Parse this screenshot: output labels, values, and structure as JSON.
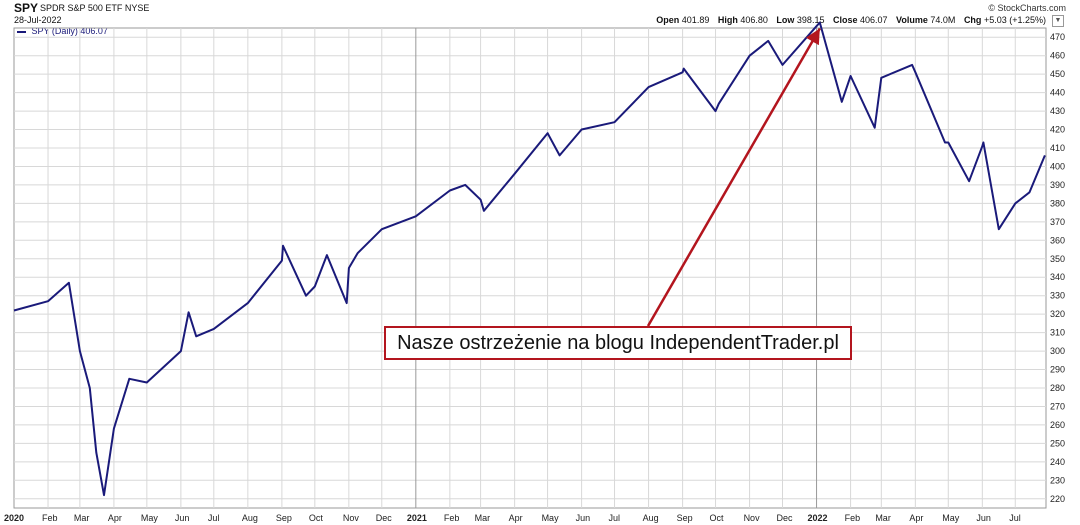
{
  "header": {
    "symbol": "SPY",
    "name": "SPDR S&P 500 ETF",
    "exchange": "NYSE",
    "date": "28-Jul-2022",
    "copyright": "© StockCharts.com",
    "stats": {
      "open_label": "Open",
      "open": "401.89",
      "high_label": "High",
      "high": "406.80",
      "low_label": "Low",
      "low": "398.15",
      "close_label": "Close",
      "close": "406.07",
      "volume_label": "Volume",
      "volume": "74.0M",
      "chg_label": "Chg",
      "chg": "+5.03 (+1.25%)"
    }
  },
  "legend": {
    "label": "SPY (Daily) 406.07"
  },
  "annotation": {
    "text": "Nasze ostrzeżenie na blogu IndependentTrader.pl",
    "border_color": "#b3151e"
  },
  "colors": {
    "line": "#1a1a7a",
    "grid": "#d8d8d8",
    "arrow": "#b3151e",
    "dark_grid": "#9a9a9a"
  },
  "chart_data": {
    "type": "line",
    "title": "SPY SPDR S&P 500 ETF NYSE",
    "series": [
      {
        "name": "SPY (Daily) 406.07",
        "values_note": ""
      }
    ],
    "ylim": [
      215,
      475
    ],
    "y_ticks": [
      220,
      230,
      240,
      250,
      260,
      270,
      280,
      290,
      300,
      310,
      320,
      330,
      340,
      350,
      360,
      370,
      380,
      390,
      400,
      410,
      420,
      430,
      440,
      450,
      460,
      470
    ],
    "x_ticks": [
      "2020",
      "Feb",
      "Mar",
      "Apr",
      "May",
      "Jun",
      "Jul",
      "Aug",
      "Sep",
      "Oct",
      "Nov",
      "Dec",
      "2021",
      "Feb",
      "Mar",
      "Apr",
      "May",
      "Jun",
      "Jul",
      "Aug",
      "Sep",
      "Oct",
      "Nov",
      "Dec",
      "2022",
      "Feb",
      "Mar",
      "Apr",
      "May",
      "Jun",
      "Jul"
    ],
    "x": [
      "2020-01",
      "2020-02",
      "2020-02-20",
      "2020-03",
      "2020-03-10",
      "2020-03-16",
      "2020-03-23",
      "2020-04",
      "2020-04-15",
      "2020-05",
      "2020-06",
      "2020-06-08",
      "2020-06-15",
      "2020-07",
      "2020-08",
      "2020-09",
      "2020-09-02",
      "2020-09-23",
      "2020-10",
      "2020-10-12",
      "2020-10-30",
      "2020-11",
      "2020-11-09",
      "2020-12",
      "2021-01",
      "2021-02",
      "2021-02-15",
      "2021-03",
      "2021-03-04",
      "2021-04",
      "2021-05",
      "2021-05-12",
      "2021-06",
      "2021-07",
      "2021-08",
      "2021-09",
      "2021-09-02",
      "2021-10",
      "2021-10-04",
      "2021-11",
      "2021-11-18",
      "2021-12",
      "2022-01",
      "2022-01-04",
      "2022-01-24",
      "2022-02",
      "2022-02-23",
      "2022-03",
      "2022-03-29",
      "2022-04",
      "2022-04-28",
      "2022-05",
      "2022-05-20",
      "2022-06",
      "2022-06-02",
      "2022-06-16",
      "2022-07",
      "2022-07-14",
      "2022-07-28"
    ],
    "y": [
      322,
      327,
      337,
      300,
      280,
      245,
      222,
      258,
      285,
      283,
      300,
      321,
      308,
      312,
      326,
      349,
      357,
      330,
      335,
      352,
      326,
      345,
      353,
      366,
      373,
      387,
      390,
      382,
      376,
      396,
      418,
      406,
      420,
      424,
      443,
      451,
      453,
      430,
      434,
      460,
      468,
      455,
      476,
      478,
      435,
      449,
      421,
      448,
      455,
      451,
      413,
      413,
      392,
      411,
      413,
      366,
      380,
      386,
      406
    ]
  }
}
